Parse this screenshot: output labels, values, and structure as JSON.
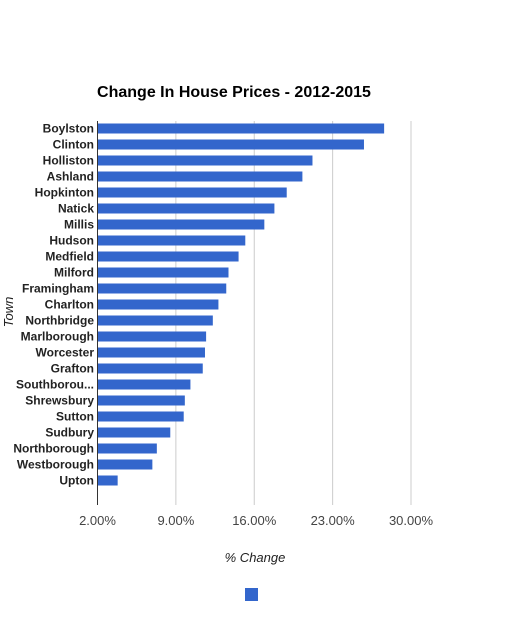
{
  "chart_data": {
    "type": "bar",
    "orientation": "horizontal",
    "title": "Change In House Prices - 2012-2015",
    "xlabel": "% Change",
    "ylabel": "Town",
    "categories": [
      "Boylston",
      "Clinton",
      "Holliston",
      "Ashland",
      "Hopkinton",
      "Natick",
      "Millis",
      "Hudson",
      "Medfield",
      "Milford",
      "Framingham",
      "Charlton",
      "Northbridge",
      "Marlborough",
      "Worcester",
      "Grafton",
      "Southborou...",
      "Shrewsbury",
      "Sutton",
      "Sudbury",
      "Northborough",
      "Westborough",
      "Upton"
    ],
    "series": [
      {
        "values": [
          27.6,
          25.8,
          21.2,
          20.3,
          18.9,
          17.8,
          16.9,
          15.2,
          14.6,
          13.7,
          13.5,
          12.8,
          12.3,
          11.7,
          11.6,
          11.4,
          10.3,
          9.8,
          9.7,
          8.5,
          7.3,
          6.9,
          3.8
        ]
      }
    ],
    "xticks": [
      "2.00%",
      "9.00%",
      "16.00%",
      "23.00%",
      "30.00%"
    ],
    "xlim": [
      2,
      30
    ],
    "xtick_values": [
      2,
      9,
      16,
      23,
      30
    ],
    "grid": true,
    "legend": "bottom-center",
    "colors": {
      "bar": "#3366cc"
    }
  }
}
